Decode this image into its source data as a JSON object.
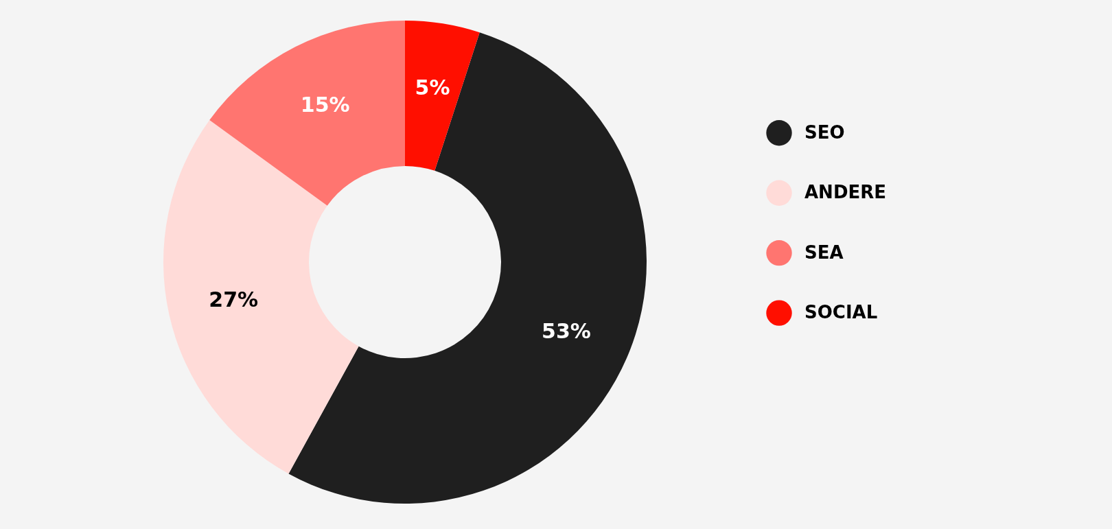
{
  "chart_data": {
    "type": "donut",
    "categories": [
      "SEO",
      "ANDERE",
      "SEA",
      "SOCIAL"
    ],
    "values": [
      53,
      27,
      15,
      5
    ],
    "colors": [
      "#1f1f1f",
      "#ffdbd8",
      "#ff7570",
      "#ff0f00"
    ],
    "value_labels": [
      "53%",
      "27%",
      "15%",
      "5%"
    ],
    "legend": "right"
  }
}
